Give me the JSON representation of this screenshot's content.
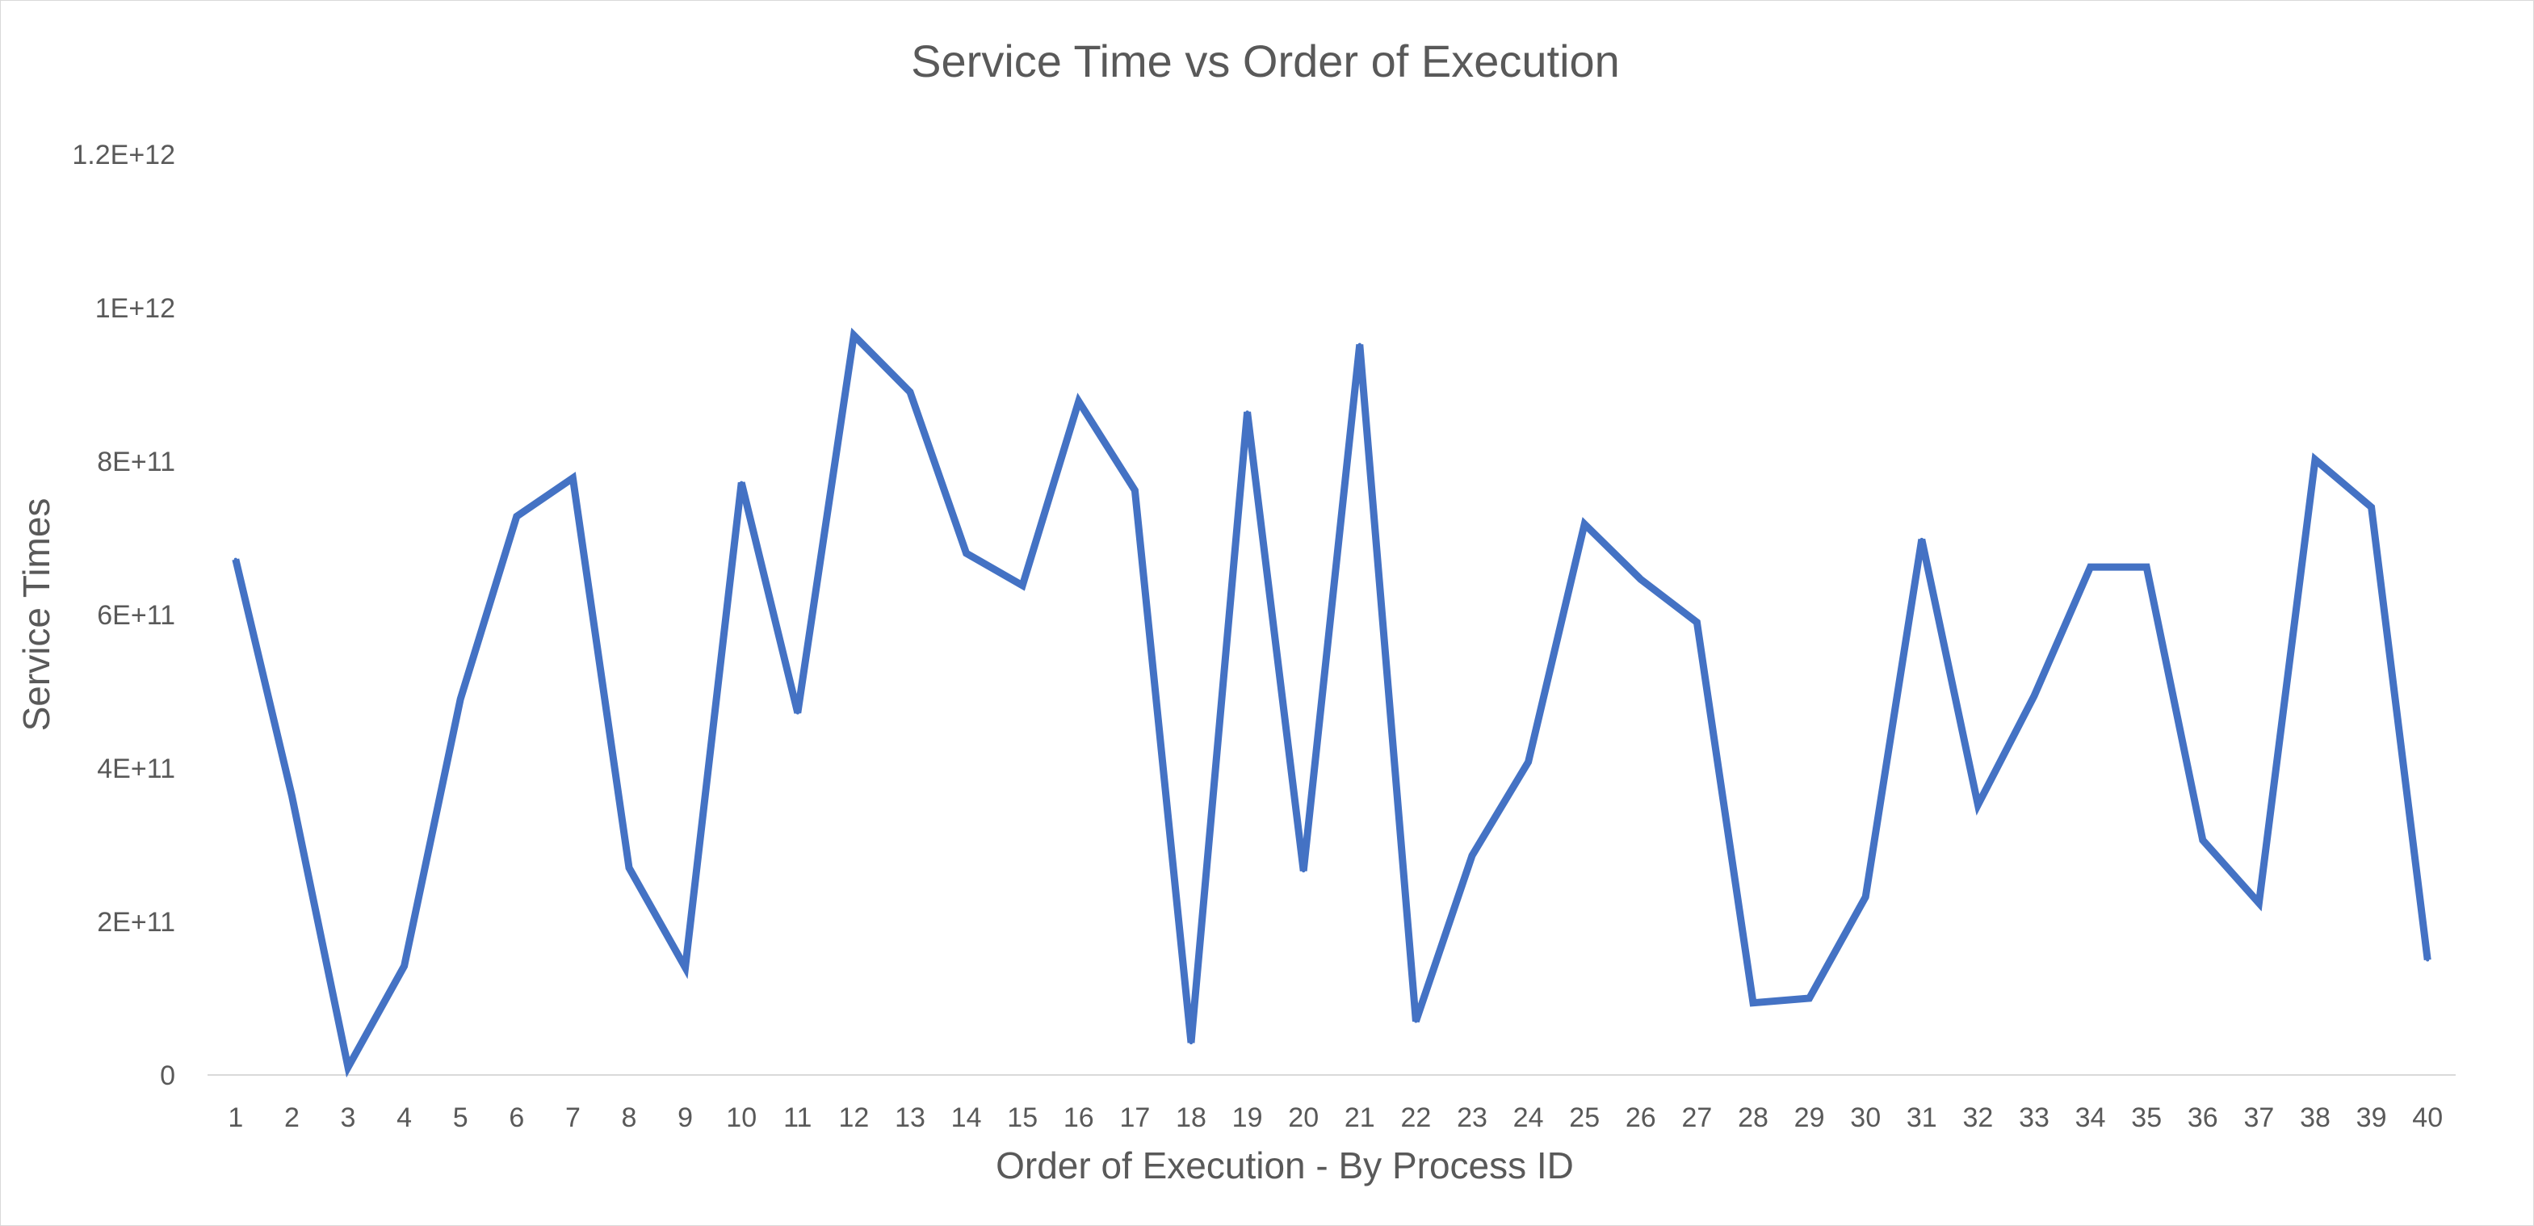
{
  "chart_data": {
    "type": "line",
    "title": "Service Time vs Order of Execution",
    "xlabel": "Order of Execution - By Process ID",
    "ylabel": "Service Times",
    "categories": [
      "1",
      "2",
      "3",
      "4",
      "5",
      "6",
      "7",
      "8",
      "9",
      "10",
      "11",
      "12",
      "13",
      "14",
      "15",
      "16",
      "17",
      "18",
      "19",
      "20",
      "21",
      "22",
      "23",
      "24",
      "25",
      "26",
      "27",
      "28",
      "29",
      "30",
      "31",
      "32",
      "33",
      "34",
      "35",
      "36",
      "37",
      "38",
      "39",
      "40"
    ],
    "yticks": [
      0,
      200000000000,
      400000000000,
      600000000000,
      800000000000,
      1000000000000,
      1200000000000
    ],
    "ytick_labels": [
      "0",
      "2E+11",
      "4E+11",
      "6E+11",
      "8E+11",
      "1E+12",
      "1.2E+12"
    ],
    "ylim": [
      0,
      1200000000000
    ],
    "grid": false,
    "legend": "none",
    "series": [
      {
        "color": "#4472C4",
        "values": [
          672000000000,
          364000000000,
          10000000000,
          142000000000,
          490000000000,
          728000000000,
          778000000000,
          270000000000,
          140000000000,
          772000000000,
          472000000000,
          964000000000,
          890000000000,
          680000000000,
          638000000000,
          878000000000,
          762000000000,
          42000000000,
          864000000000,
          266000000000,
          952000000000,
          70000000000,
          286000000000,
          408000000000,
          718000000000,
          646000000000,
          590000000000,
          94000000000,
          100000000000,
          232000000000,
          698000000000,
          352000000000,
          494000000000,
          662000000000,
          662000000000,
          306000000000,
          224000000000,
          802000000000,
          740000000000,
          150000000000
        ]
      }
    ]
  }
}
